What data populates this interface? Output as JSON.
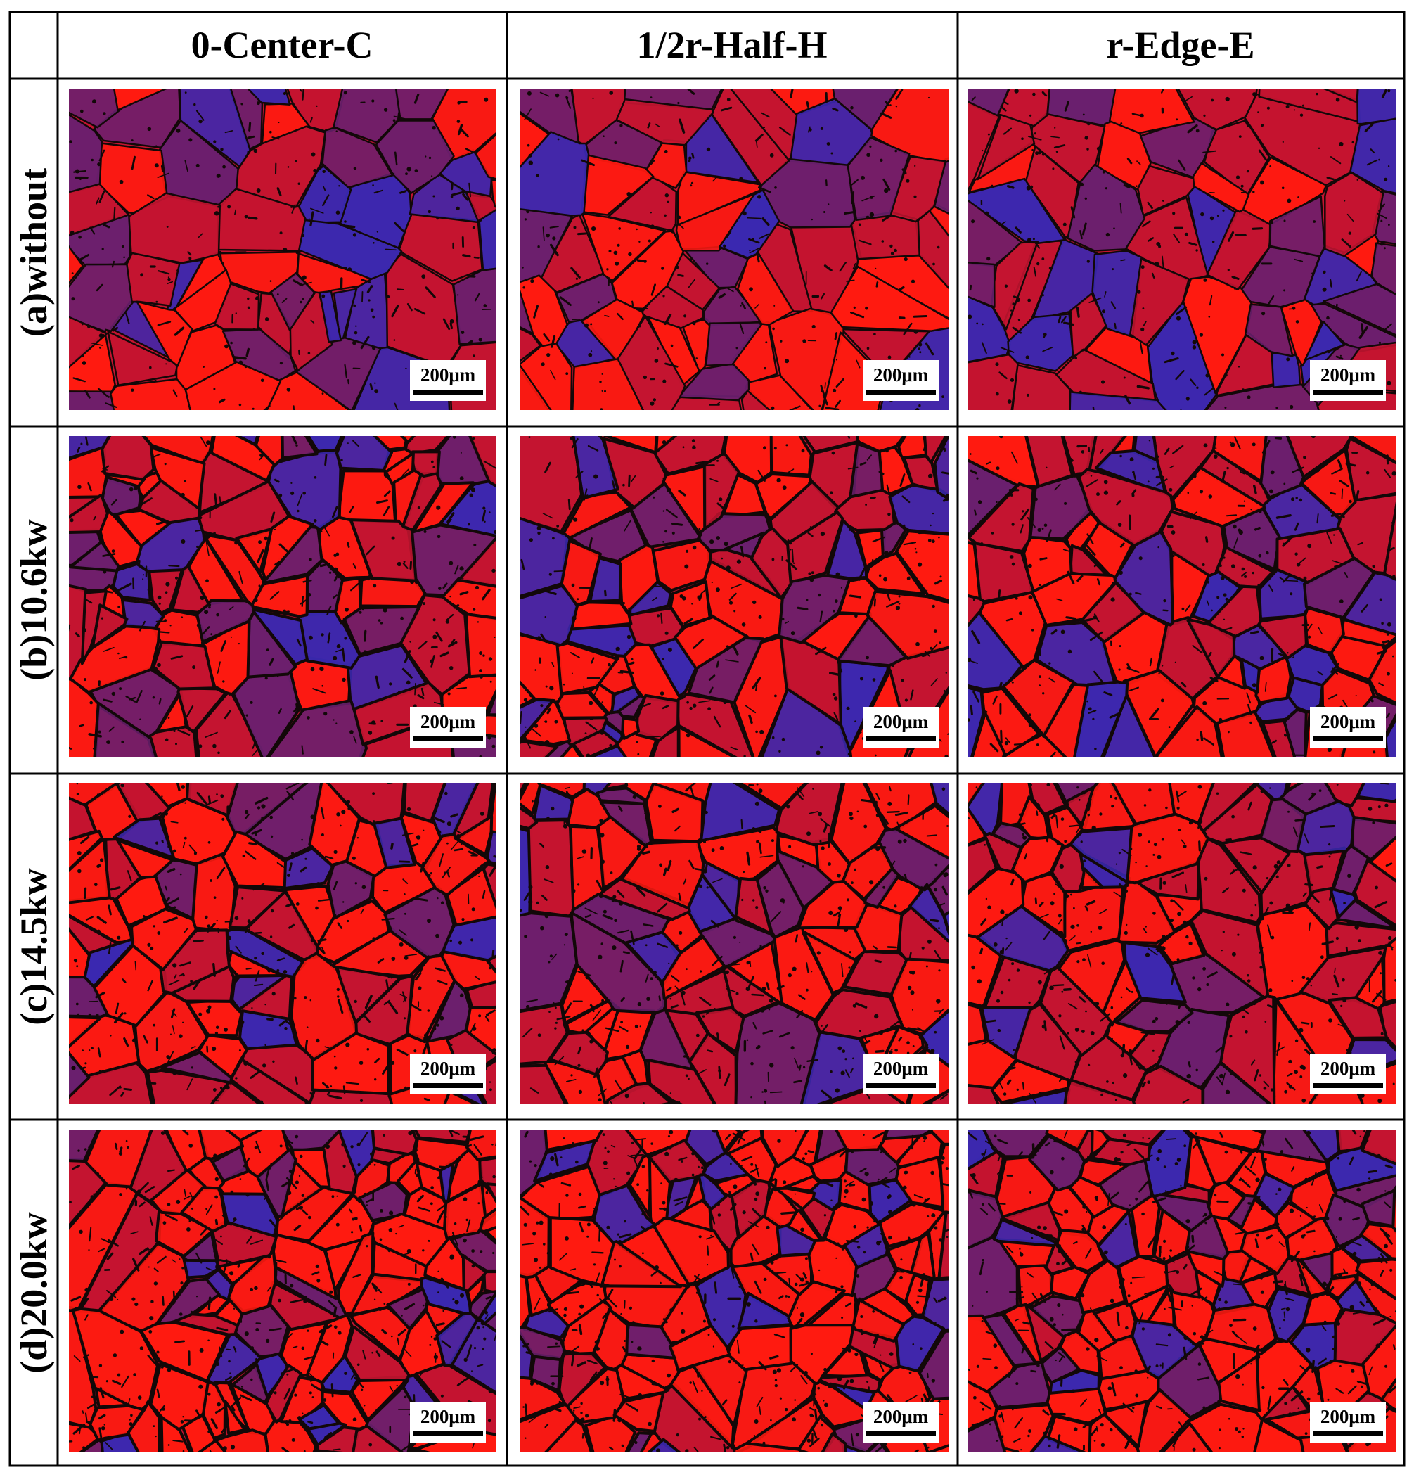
{
  "columns": [
    {
      "label": "0-Center-C"
    },
    {
      "label": "1/2r-Half-H"
    },
    {
      "label": "r-Edge-E"
    }
  ],
  "rows": [
    {
      "label": "(a)without"
    },
    {
      "label": "(b)10.6kw"
    },
    {
      "label": "(c)14.5kw"
    },
    {
      "label": "(d)20.0kw"
    }
  ],
  "scale_bar_label": "200μm",
  "colors": {
    "grain_red": "#ff1a10",
    "grain_crimson": "#c41430",
    "grain_purple": "#6a1f6e",
    "grain_blue": "#3a28b0",
    "boundary": "#120808",
    "grid_line": "#000000"
  }
}
